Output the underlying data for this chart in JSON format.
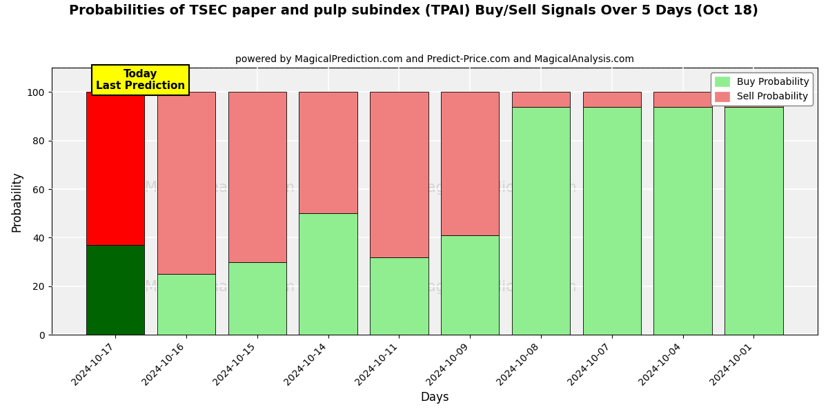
{
  "title": "Probabilities of TSEC paper and pulp subindex (TPAI) Buy/Sell Signals Over 5 Days (Oct 18)",
  "subtitle": "powered by MagicalPrediction.com and Predict-Price.com and MagicalAnalysis.com",
  "xlabel": "Days",
  "ylabel": "Probability",
  "dates": [
    "2024-10-17",
    "2024-10-16",
    "2024-10-15",
    "2024-10-14",
    "2024-10-11",
    "2024-10-09",
    "2024-10-08",
    "2024-10-07",
    "2024-10-04",
    "2024-10-01"
  ],
  "buy_values": [
    37,
    25,
    30,
    50,
    32,
    41,
    94,
    94,
    94,
    94
  ],
  "sell_values": [
    63,
    75,
    70,
    50,
    68,
    59,
    6,
    6,
    6,
    6
  ],
  "today_buy_color": "#006400",
  "today_sell_color": "#ff0000",
  "other_buy_color": "#90EE90",
  "other_sell_color": "#F08080",
  "today_label_bg": "#ffff00",
  "today_label_text": "Today\nLast Prediction",
  "legend_buy": "Buy Probability",
  "legend_sell": "Sell Probability",
  "ylim": [
    0,
    110
  ],
  "yticks": [
    0,
    20,
    40,
    60,
    80,
    100
  ],
  "dashed_line_y": 110,
  "figsize": [
    12.0,
    6.0
  ],
  "dpi": 100,
  "bg_color": "#ffffff",
  "plot_bg_color": "#f0f0f0"
}
